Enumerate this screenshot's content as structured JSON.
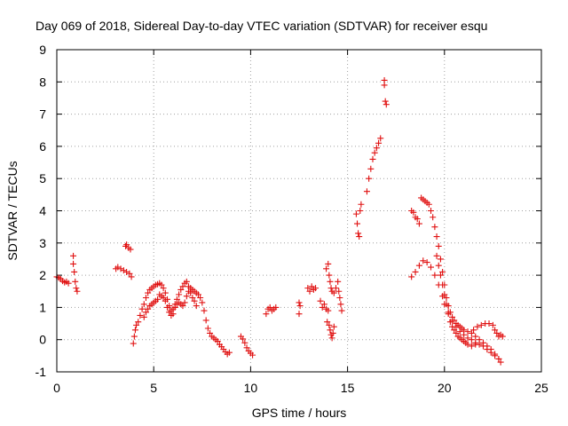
{
  "chart_data": {
    "type": "scatter",
    "title": "Day 069 of 2018, Sidereal Day-to-day VTEC variation (SDTVAR) for receiver esqu",
    "xlabel": "GPS time / hours",
    "ylabel": "SDTVAR / TECUs",
    "xlim": [
      0,
      25
    ],
    "ylim": [
      -1,
      9
    ],
    "xticks": [
      0,
      5,
      10,
      15,
      20,
      25
    ],
    "yticks": [
      -1,
      0,
      1,
      2,
      3,
      4,
      5,
      6,
      7,
      8,
      9
    ],
    "grid": true,
    "marker": "plus",
    "marker_color": "#e01010",
    "series": [
      {
        "name": "SDTVAR",
        "arcs": [
          [
            [
              0.0,
              1.95
            ],
            [
              0.1,
              1.92
            ],
            [
              0.2,
              1.88
            ],
            [
              0.3,
              1.82
            ],
            [
              0.4,
              1.78
            ],
            [
              0.5,
              1.8
            ],
            [
              0.6,
              1.75
            ]
          ],
          [
            [
              0.85,
              2.6
            ],
            [
              0.85,
              2.35
            ],
            [
              0.9,
              2.1
            ],
            [
              0.95,
              1.8
            ],
            [
              1.0,
              1.6
            ],
            [
              1.05,
              1.5
            ]
          ],
          [
            [
              3.05,
              2.2
            ],
            [
              3.15,
              2.25
            ],
            [
              3.3,
              2.2
            ],
            [
              3.45,
              2.15
            ],
            [
              3.6,
              2.1
            ],
            [
              3.75,
              2.05
            ],
            [
              3.85,
              1.95
            ]
          ],
          [
            [
              3.55,
              2.9
            ],
            [
              3.6,
              2.95
            ],
            [
              3.7,
              2.85
            ],
            [
              3.8,
              2.8
            ]
          ],
          [
            [
              3.95,
              -0.12
            ],
            [
              4.0,
              0.1
            ],
            [
              4.05,
              0.3
            ],
            [
              4.1,
              0.45
            ],
            [
              4.2,
              0.55
            ],
            [
              4.3,
              0.75
            ],
            [
              4.4,
              0.95
            ],
            [
              4.5,
              1.1
            ],
            [
              4.6,
              1.3
            ],
            [
              4.7,
              1.45
            ],
            [
              4.8,
              1.55
            ],
            [
              4.9,
              1.6
            ],
            [
              5.0,
              1.65
            ],
            [
              5.1,
              1.7
            ],
            [
              5.2,
              1.72
            ],
            [
              5.3,
              1.75
            ],
            [
              5.4,
              1.7
            ],
            [
              5.5,
              1.6
            ],
            [
              5.6,
              1.45
            ],
            [
              5.7,
              1.25
            ],
            [
              5.8,
              1.05
            ],
            [
              5.9,
              0.9
            ],
            [
              6.0,
              0.95
            ],
            [
              6.1,
              1.1
            ],
            [
              6.2,
              1.25
            ],
            [
              6.3,
              1.4
            ],
            [
              6.4,
              1.55
            ],
            [
              6.5,
              1.65
            ],
            [
              6.6,
              1.75
            ],
            [
              6.7,
              1.8
            ],
            [
              6.8,
              1.65
            ],
            [
              6.9,
              1.45
            ],
            [
              7.0,
              1.3
            ],
            [
              7.1,
              1.2
            ],
            [
              7.2,
              1.05
            ]
          ],
          [
            [
              4.5,
              0.7
            ],
            [
              4.6,
              0.85
            ],
            [
              4.7,
              0.95
            ],
            [
              4.8,
              1.05
            ],
            [
              4.9,
              1.1
            ],
            [
              5.0,
              1.15
            ],
            [
              5.1,
              1.2
            ],
            [
              5.2,
              1.25
            ],
            [
              5.3,
              1.4
            ],
            [
              5.4,
              1.35
            ],
            [
              5.5,
              1.3
            ],
            [
              5.6,
              1.2
            ],
            [
              5.7,
              1.0
            ],
            [
              5.8,
              0.85
            ],
            [
              5.9,
              0.75
            ],
            [
              6.0,
              0.8
            ],
            [
              6.1,
              1.0
            ],
            [
              6.2,
              1.1
            ],
            [
              6.3,
              1.15
            ],
            [
              6.4,
              1.1
            ],
            [
              6.5,
              1.05
            ],
            [
              6.6,
              1.15
            ],
            [
              6.7,
              1.35
            ],
            [
              6.8,
              1.5
            ],
            [
              6.9,
              1.6
            ],
            [
              7.0,
              1.55
            ],
            [
              7.1,
              1.5
            ],
            [
              7.2,
              1.45
            ],
            [
              7.3,
              1.4
            ],
            [
              7.4,
              1.3
            ],
            [
              7.5,
              1.15
            ],
            [
              7.6,
              0.9
            ],
            [
              7.7,
              0.6
            ],
            [
              7.8,
              0.35
            ],
            [
              7.9,
              0.2
            ],
            [
              8.0,
              0.1
            ],
            [
              8.1,
              0.05
            ],
            [
              8.2,
              0.0
            ],
            [
              8.3,
              -0.05
            ],
            [
              8.4,
              -0.15
            ],
            [
              8.5,
              -0.22
            ],
            [
              8.6,
              -0.3
            ],
            [
              8.7,
              -0.38
            ],
            [
              8.8,
              -0.45
            ],
            [
              8.9,
              -0.4
            ]
          ],
          [
            [
              9.5,
              0.1
            ],
            [
              9.6,
              0.02
            ],
            [
              9.7,
              -0.1
            ],
            [
              9.8,
              -0.25
            ],
            [
              9.9,
              -0.35
            ],
            [
              10.0,
              -0.42
            ],
            [
              10.1,
              -0.48
            ]
          ],
          [
            [
              10.8,
              0.8
            ],
            [
              10.9,
              0.95
            ],
            [
              11.0,
              1.0
            ],
            [
              11.1,
              0.9
            ],
            [
              11.2,
              0.95
            ],
            [
              11.3,
              1.0
            ]
          ],
          [
            [
              12.5,
              1.15
            ],
            [
              12.5,
              0.8
            ],
            [
              12.55,
              1.05
            ]
          ],
          [
            [
              12.95,
              1.6
            ],
            [
              13.05,
              1.5
            ],
            [
              13.15,
              1.65
            ],
            [
              13.25,
              1.55
            ],
            [
              13.35,
              1.6
            ]
          ],
          [
            [
              13.6,
              1.2
            ],
            [
              13.7,
              1.0
            ],
            [
              13.8,
              1.1
            ],
            [
              13.9,
              0.95
            ],
            [
              14.0,
              0.9
            ]
          ],
          [
            [
              13.9,
              2.2
            ],
            [
              14.0,
              2.35
            ],
            [
              14.05,
              2.0
            ],
            [
              14.1,
              1.8
            ],
            [
              14.15,
              1.6
            ],
            [
              14.2,
              1.5
            ],
            [
              14.3,
              1.45
            ],
            [
              14.4,
              1.6
            ],
            [
              14.5,
              1.8
            ],
            [
              14.55,
              1.5
            ],
            [
              14.6,
              1.3
            ],
            [
              14.65,
              1.1
            ],
            [
              14.7,
              0.9
            ]
          ],
          [
            [
              13.95,
              0.55
            ],
            [
              14.05,
              0.45
            ],
            [
              14.1,
              0.3
            ],
            [
              14.15,
              0.15
            ],
            [
              14.2,
              0.05
            ],
            [
              14.25,
              0.2
            ],
            [
              14.3,
              0.4
            ]
          ],
          [
            [
              15.45,
              3.9
            ],
            [
              15.5,
              3.6
            ],
            [
              15.55,
              3.3
            ],
            [
              15.6,
              3.2
            ],
            [
              15.65,
              4.0
            ],
            [
              15.7,
              4.2
            ]
          ],
          [
            [
              16.0,
              4.6
            ],
            [
              16.1,
              5.0
            ],
            [
              16.2,
              5.3
            ],
            [
              16.3,
              5.6
            ],
            [
              16.4,
              5.8
            ],
            [
              16.5,
              5.95
            ],
            [
              16.6,
              6.1
            ],
            [
              16.7,
              6.25
            ]
          ],
          [
            [
              16.9,
              8.05
            ],
            [
              16.9,
              7.9
            ],
            [
              16.95,
              7.4
            ],
            [
              17.0,
              7.3
            ]
          ],
          [
            [
              18.3,
              4.0
            ],
            [
              18.4,
              3.95
            ],
            [
              18.5,
              3.8
            ],
            [
              18.6,
              3.75
            ],
            [
              18.7,
              3.6
            ]
          ],
          [
            [
              18.8,
              4.4
            ],
            [
              18.9,
              4.35
            ],
            [
              19.0,
              4.3
            ],
            [
              19.1,
              4.25
            ],
            [
              19.2,
              4.2
            ],
            [
              19.3,
              4.0
            ],
            [
              19.4,
              3.8
            ],
            [
              19.5,
              3.5
            ],
            [
              19.6,
              3.2
            ],
            [
              19.7,
              2.9
            ],
            [
              19.8,
              2.5
            ],
            [
              19.9,
              2.1
            ],
            [
              20.0,
              1.7
            ],
            [
              20.1,
              1.3
            ],
            [
              20.2,
              1.05
            ],
            [
              20.3,
              0.85
            ],
            [
              20.4,
              0.7
            ],
            [
              20.5,
              0.6
            ],
            [
              20.6,
              0.5
            ],
            [
              20.7,
              0.45
            ],
            [
              20.8,
              0.4
            ],
            [
              20.9,
              0.35
            ],
            [
              21.0,
              0.3
            ],
            [
              21.2,
              0.25
            ],
            [
              21.4,
              0.2
            ],
            [
              21.6,
              0.1
            ],
            [
              21.8,
              0.0
            ],
            [
              22.0,
              -0.1
            ],
            [
              22.2,
              -0.2
            ],
            [
              22.4,
              -0.3
            ],
            [
              22.6,
              -0.45
            ],
            [
              22.8,
              -0.6
            ],
            [
              22.9,
              -0.7
            ]
          ],
          [
            [
              18.3,
              1.95
            ],
            [
              18.5,
              2.1
            ],
            [
              18.7,
              2.3
            ],
            [
              18.9,
              2.45
            ],
            [
              19.1,
              2.4
            ],
            [
              19.3,
              2.25
            ],
            [
              19.5,
              2.0
            ],
            [
              19.7,
              1.7
            ],
            [
              19.9,
              1.35
            ],
            [
              20.0,
              1.1
            ],
            [
              20.2,
              0.85
            ],
            [
              20.4,
              0.6
            ],
            [
              20.6,
              0.4
            ],
            [
              20.8,
              0.25
            ],
            [
              21.0,
              0.15
            ],
            [
              21.2,
              0.05
            ],
            [
              21.4,
              0.0
            ],
            [
              21.6,
              -0.1
            ],
            [
              21.8,
              -0.15
            ],
            [
              22.0,
              -0.2
            ],
            [
              22.2,
              -0.3
            ],
            [
              22.4,
              -0.4
            ],
            [
              22.6,
              -0.5
            ],
            [
              22.8,
              -0.6
            ]
          ],
          [
            [
              19.6,
              2.6
            ],
            [
              19.7,
              2.3
            ],
            [
              19.8,
              2.0
            ],
            [
              19.9,
              1.7
            ],
            [
              20.0,
              1.4
            ],
            [
              20.1,
              1.1
            ],
            [
              20.2,
              0.8
            ],
            [
              20.3,
              0.55
            ],
            [
              20.4,
              0.4
            ],
            [
              20.5,
              0.3
            ],
            [
              20.6,
              0.2
            ],
            [
              20.7,
              0.1
            ],
            [
              20.8,
              0.05
            ],
            [
              20.9,
              0.0
            ],
            [
              21.0,
              -0.05
            ],
            [
              21.1,
              -0.1
            ],
            [
              21.2,
              -0.15
            ],
            [
              21.4,
              -0.2
            ],
            [
              21.6,
              -0.15
            ]
          ],
          [
            [
              21.5,
              0.3
            ],
            [
              21.7,
              0.4
            ],
            [
              21.9,
              0.45
            ],
            [
              22.1,
              0.5
            ],
            [
              22.3,
              0.5
            ],
            [
              22.5,
              0.45
            ],
            [
              22.6,
              0.3
            ],
            [
              22.7,
              0.2
            ],
            [
              22.8,
              0.1
            ],
            [
              22.9,
              0.15
            ],
            [
              23.0,
              0.1
            ]
          ]
        ]
      }
    ]
  }
}
